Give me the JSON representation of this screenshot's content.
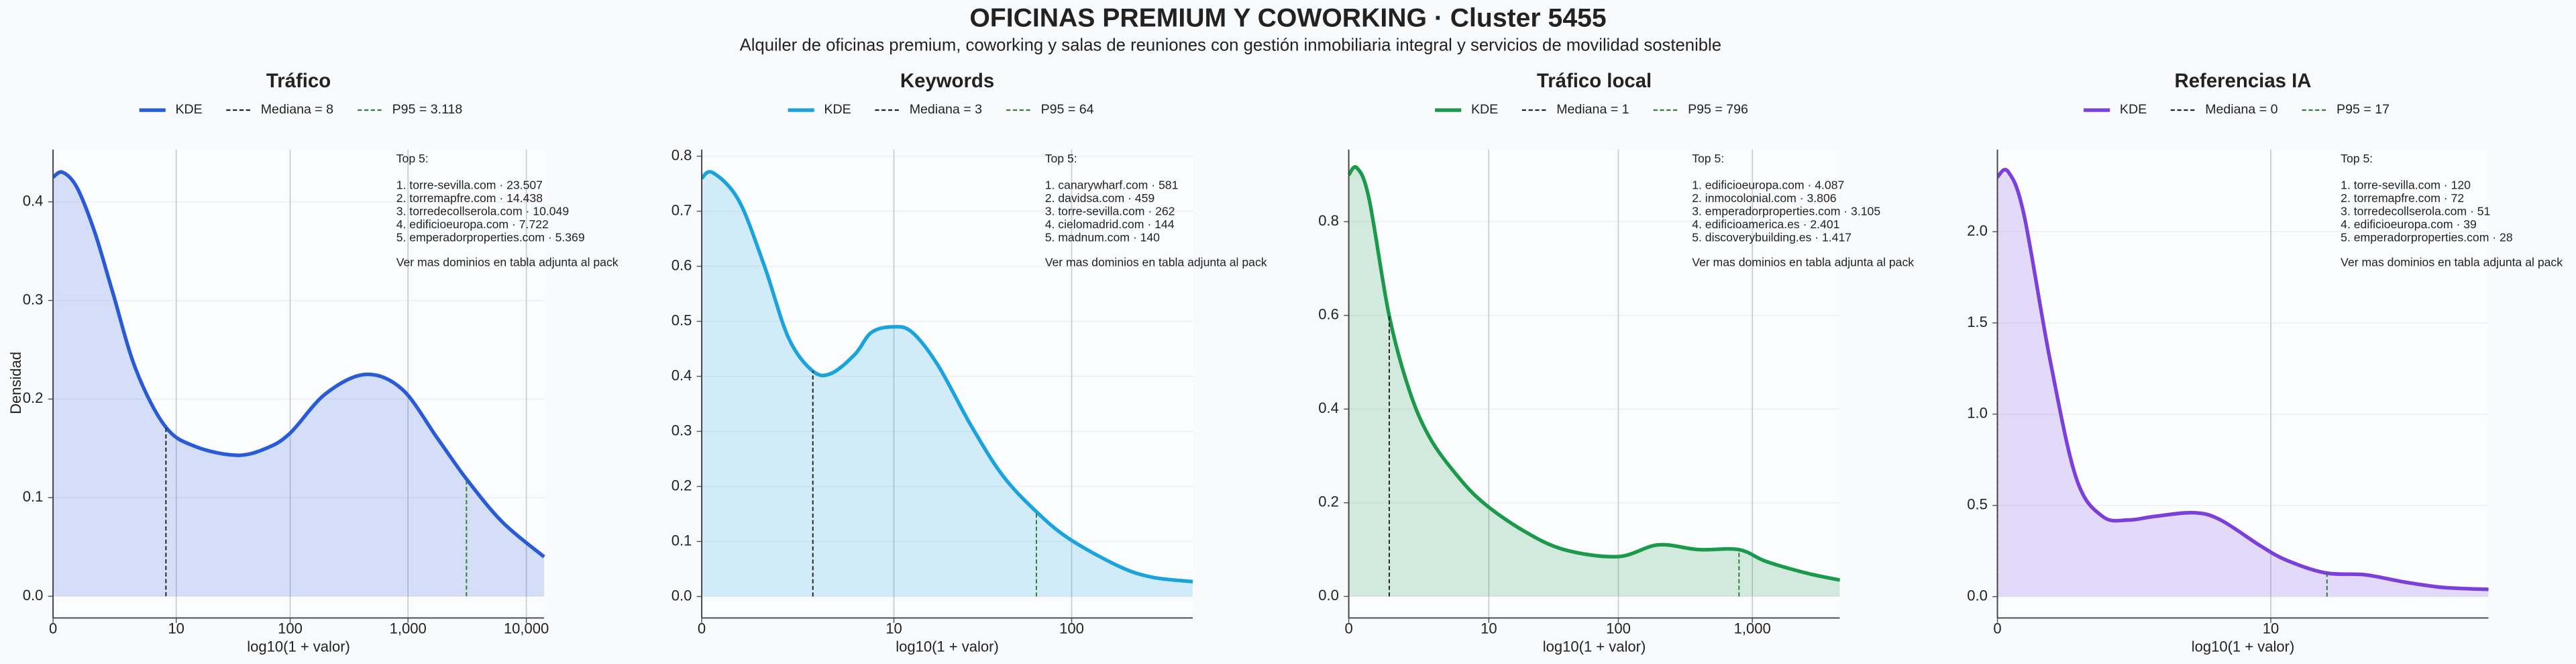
{
  "header": {
    "title": "OFICINAS PREMIUM Y COWORKING · Cluster 5455",
    "subtitle": "Alquiler de oficinas premium, coworking y salas de reuniones con gestión inmobiliaria integral y servicios de movilidad sostenible"
  },
  "chart_data": [
    {
      "type": "line",
      "title": "Tráfico",
      "x_label": "log10(1 + valor)",
      "y_label": "Densidad",
      "x": [
        0,
        0.08,
        0.2,
        0.35,
        0.5,
        0.7,
        0.95,
        1.2,
        1.55,
        1.8,
        2.0,
        2.3,
        2.64,
        2.95,
        3.25,
        3.5,
        3.8,
        4.15
      ],
      "series": [
        {
          "name": "KDE",
          "color": "#2a5bd7",
          "values": [
            0.425,
            0.43,
            0.415,
            0.37,
            0.31,
            0.23,
            0.172,
            0.152,
            0.143,
            0.15,
            0.165,
            0.205,
            0.225,
            0.21,
            0.16,
            0.118,
            0.075,
            0.04
          ]
        }
      ],
      "median": {
        "label": "Mediana = 8",
        "x": 0.954,
        "color": "#222222"
      },
      "p95": {
        "label": "P95 = 3.118",
        "x": 3.494,
        "color": "#2e7d32"
      },
      "annotation": {
        "heading": "Top 5:",
        "items": [
          "1. torre-sevilla.com · 23.507",
          "2. torremapfre.com · 14.438",
          "3. torredecollserola.com · 10.049",
          "4. edificioeuropa.com · 7.722",
          "5. emperadorproperties.com · 5.369"
        ],
        "footer": "Ver mas dominios en tabla adjunta al pack"
      },
      "xlim": [
        0,
        4.15
      ],
      "xticks": [
        0,
        {
          "value": 1.041,
          "label": "10"
        },
        {
          "value": 2.004,
          "label": "100"
        },
        {
          "value": 3.0,
          "label": "1,000"
        },
        {
          "value": 4.0,
          "label": "10,000"
        }
      ],
      "ylim": [
        -0.022,
        0.453
      ],
      "yticks": [
        {
          "value": 0,
          "label": "0.0"
        },
        0.1,
        0.2,
        0.3,
        0.4
      ],
      "grid": true
    },
    {
      "type": "line",
      "title": "Keywords",
      "x_label": "log10(1 + valor)",
      "x": [
        0,
        0.06,
        0.2,
        0.34,
        0.47,
        0.6,
        0.7,
        0.83,
        0.92,
        1.04,
        1.14,
        1.28,
        1.46,
        1.63,
        1.81,
        1.99,
        2.26,
        2.44,
        2.66
      ],
      "series": [
        {
          "name": "KDE",
          "color": "#1ba3dd",
          "values": [
            0.76,
            0.77,
            0.72,
            0.6,
            0.47,
            0.41,
            0.405,
            0.44,
            0.48,
            0.49,
            0.48,
            0.42,
            0.31,
            0.22,
            0.155,
            0.105,
            0.055,
            0.035,
            0.027
          ]
        }
      ],
      "median": {
        "label": "Mediana = 3",
        "x": 0.602,
        "color": "#222222"
      },
      "p95": {
        "label": "P95 = 64",
        "x": 1.813,
        "color": "#2e7d32"
      },
      "annotation": {
        "heading": "Top 5:",
        "items": [
          "1. canarywharf.com · 581",
          "2. davidsa.com · 459",
          "3. torre-sevilla.com · 262",
          "4. cielomadrid.com · 144",
          "5. madnum.com · 140"
        ],
        "footer": "Ver mas dominios en tabla adjunta al pack"
      },
      "xlim": [
        0,
        2.66
      ],
      "xticks": [
        0,
        {
          "value": 1.041,
          "label": "10"
        },
        {
          "value": 2.004,
          "label": "100"
        }
      ],
      "ylim": [
        -0.039,
        0.812
      ],
      "yticks": [
        {
          "value": 0,
          "label": "0.0"
        },
        0.1,
        0.2,
        0.3,
        0.4,
        0.5,
        0.6,
        0.7,
        0.8
      ],
      "grid": true
    },
    {
      "type": "line",
      "title": "Tráfico local",
      "x_label": "log10(1 + valor)",
      "x": [
        0,
        0.06,
        0.15,
        0.3,
        0.45,
        0.6,
        0.8,
        1.0,
        1.3,
        1.6,
        2.0,
        2.3,
        2.6,
        2.9,
        3.1,
        3.4,
        3.65
      ],
      "series": [
        {
          "name": "KDE",
          "color": "#1a9a4a",
          "values": [
            0.9,
            0.915,
            0.85,
            0.6,
            0.44,
            0.34,
            0.26,
            0.2,
            0.14,
            0.1,
            0.085,
            0.11,
            0.1,
            0.1,
            0.075,
            0.05,
            0.035
          ]
        }
      ],
      "median": {
        "label": "Mediana = 1",
        "x": 0.301,
        "color": "#222222"
      },
      "p95": {
        "label": "P95 = 796",
        "x": 2.901,
        "color": "#2e7d32"
      },
      "annotation": {
        "heading": "Top 5:",
        "items": [
          "1. edificioeuropa.com · 4.087",
          "2. inmocolonial.com · 3.806",
          "3. emperadorproperties.com · 3.105",
          "4. edificioamerica.es · 2.401",
          "5. discoverybuilding.es · 1.417"
        ],
        "footer": "Ver mas dominios en tabla adjunta al pack"
      },
      "xlim": [
        0,
        3.65
      ],
      "xticks": [
        0,
        {
          "value": 1.041,
          "label": "10"
        },
        {
          "value": 2.004,
          "label": "100"
        },
        {
          "value": 3.0,
          "label": "1,000"
        }
      ],
      "ylim": [
        -0.046,
        0.954
      ],
      "yticks": [
        {
          "value": 0,
          "label": "0.0"
        },
        0.2,
        0.4,
        0.6,
        0.8
      ],
      "grid": true
    },
    {
      "type": "line",
      "title": "Referencias IA",
      "x_label": "log10(1 + valor)",
      "x": [
        0,
        0.04,
        0.1,
        0.2,
        0.3,
        0.4,
        0.5,
        0.6,
        0.75,
        0.85,
        1.0,
        1.1,
        1.25,
        1.4,
        1.55,
        1.7,
        1.87
      ],
      "series": [
        {
          "name": "KDE",
          "color": "#7b3fdc",
          "values": [
            2.3,
            2.33,
            2.1,
            1.3,
            0.65,
            0.44,
            0.42,
            0.44,
            0.46,
            0.42,
            0.28,
            0.2,
            0.13,
            0.12,
            0.08,
            0.05,
            0.04
          ]
        }
      ],
      "median": {
        "label": "Mediana = 0",
        "x": 0,
        "color": "#222222"
      },
      "p95": {
        "label": "P95 = 17",
        "x": 1.255,
        "color": "#2e7d32"
      },
      "annotation": {
        "heading": "Top 5:",
        "items": [
          "1. torre-sevilla.com · 120",
          "2. torremapfre.com · 72",
          "3. torredecollserola.com · 51",
          "4. edificioeuropa.com · 39",
          "5. emperadorproperties.com · 28"
        ],
        "footer": "Ver mas dominios en tabla adjunta al pack"
      },
      "xlim": [
        0,
        1.87
      ],
      "xticks": [
        0,
        {
          "value": 1.041,
          "label": "10"
        }
      ],
      "ylim": [
        -0.117,
        2.45
      ],
      "yticks": [
        {
          "value": 0,
          "label": "0.0"
        },
        0.5,
        {
          "value": 1,
          "label": "1.0"
        },
        1.5,
        {
          "value": 2,
          "label": "2.0"
        }
      ],
      "grid": true
    }
  ]
}
